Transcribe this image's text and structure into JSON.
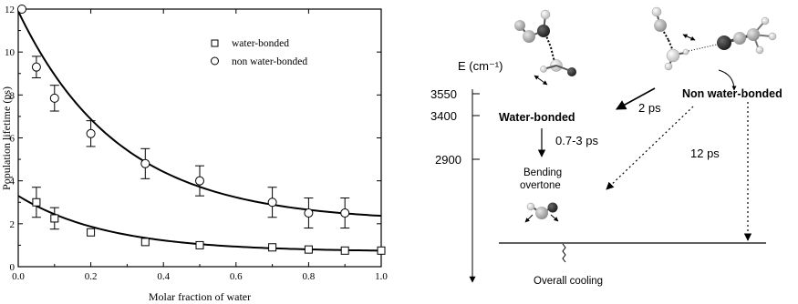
{
  "chart_data": {
    "type": "scatter",
    "xlabel": "Molar fraction of water",
    "ylabel": "Population lifetime (ps)",
    "xlim": [
      0.0,
      1.0
    ],
    "ylim": [
      0,
      12
    ],
    "x_ticks": [
      "0.0",
      "0.2",
      "0.4",
      "0.6",
      "0.8",
      "1.0"
    ],
    "x_tick_values": [
      0.0,
      0.2,
      0.4,
      0.6,
      0.8,
      1.0
    ],
    "y_ticks": [
      "0",
      "2",
      "4",
      "6",
      "8",
      "10",
      "12"
    ],
    "y_tick_values": [
      0,
      2,
      4,
      6,
      8,
      10,
      12
    ],
    "legend_position": "top-right",
    "series": [
      {
        "name": "water-bonded",
        "marker": "square",
        "x": [
          0.05,
          0.1,
          0.2,
          0.35,
          0.5,
          0.7,
          0.8,
          0.9,
          1.0
        ],
        "y": [
          3.0,
          2.25,
          1.6,
          1.15,
          1.0,
          0.9,
          0.8,
          0.75,
          0.75
        ],
        "err": [
          0.7,
          0.5,
          0.0,
          0.0,
          0.0,
          0.0,
          0.0,
          0.0,
          0.0
        ],
        "fit": {
          "a": 2.6,
          "k": 4.0,
          "c": 0.7
        }
      },
      {
        "name": "non water-bonded",
        "marker": "circle",
        "x": [
          0.01,
          0.05,
          0.1,
          0.2,
          0.35,
          0.5,
          0.7,
          0.8,
          0.9
        ],
        "y": [
          12.0,
          9.3,
          7.85,
          6.2,
          4.8,
          4.0,
          3.0,
          2.5,
          2.5
        ],
        "err": [
          0.0,
          0.5,
          0.6,
          0.6,
          0.7,
          0.7,
          0.7,
          0.7,
          0.7
        ],
        "fit": {
          "a": 9.8,
          "k": 3.6,
          "c": 2.1
        }
      }
    ]
  },
  "diagram": {
    "energy_axis_label": "E (cm⁻¹)",
    "levels": [
      "3550",
      "3400",
      "2900"
    ],
    "labels": {
      "water_bonded": "Water-bonded",
      "non_water_bonded": "Non water-bonded",
      "bending_line1": "Bending",
      "bending_line2": "overtone",
      "overall_cooling": "Overall cooling"
    },
    "rates": {
      "t_2ps": "2 ps",
      "t_07_3ps": "0.7-3 ps",
      "t_12ps": "12 ps"
    }
  }
}
